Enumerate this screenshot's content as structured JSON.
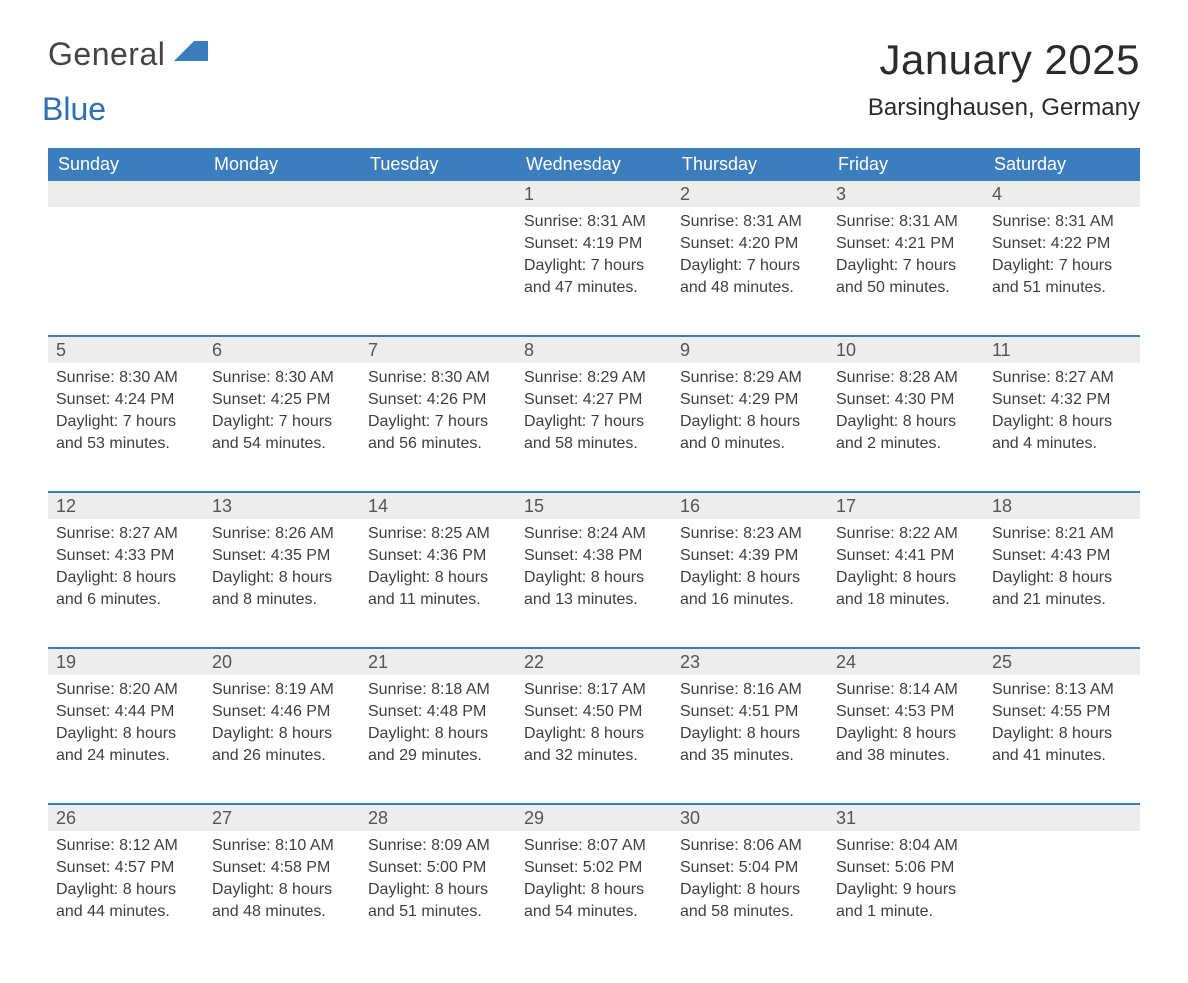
{
  "logo": {
    "general": "General",
    "blue": "Blue",
    "flag_color": "#3c7ebd"
  },
  "title": {
    "month": "January 2025",
    "location": "Barsinghausen, Germany"
  },
  "colors": {
    "header_bg": "#3c7ebd",
    "header_text": "#ffffff",
    "daynum_bg": "#ededed",
    "body_text": "#3e3e3e",
    "week_border": "#3c7ebd"
  },
  "fonts": {
    "title_size": 42,
    "location_size": 24,
    "header_size": 18,
    "body_size": 16
  },
  "day_headers": [
    "Sunday",
    "Monday",
    "Tuesday",
    "Wednesday",
    "Thursday",
    "Friday",
    "Saturday"
  ],
  "weeks": [
    [
      {
        "num": "",
        "sunrise": "",
        "sunset": "",
        "daylight1": "",
        "daylight2": ""
      },
      {
        "num": "",
        "sunrise": "",
        "sunset": "",
        "daylight1": "",
        "daylight2": ""
      },
      {
        "num": "",
        "sunrise": "",
        "sunset": "",
        "daylight1": "",
        "daylight2": ""
      },
      {
        "num": "1",
        "sunrise": "Sunrise: 8:31 AM",
        "sunset": "Sunset: 4:19 PM",
        "daylight1": "Daylight: 7 hours",
        "daylight2": "and 47 minutes."
      },
      {
        "num": "2",
        "sunrise": "Sunrise: 8:31 AM",
        "sunset": "Sunset: 4:20 PM",
        "daylight1": "Daylight: 7 hours",
        "daylight2": "and 48 minutes."
      },
      {
        "num": "3",
        "sunrise": "Sunrise: 8:31 AM",
        "sunset": "Sunset: 4:21 PM",
        "daylight1": "Daylight: 7 hours",
        "daylight2": "and 50 minutes."
      },
      {
        "num": "4",
        "sunrise": "Sunrise: 8:31 AM",
        "sunset": "Sunset: 4:22 PM",
        "daylight1": "Daylight: 7 hours",
        "daylight2": "and 51 minutes."
      }
    ],
    [
      {
        "num": "5",
        "sunrise": "Sunrise: 8:30 AM",
        "sunset": "Sunset: 4:24 PM",
        "daylight1": "Daylight: 7 hours",
        "daylight2": "and 53 minutes."
      },
      {
        "num": "6",
        "sunrise": "Sunrise: 8:30 AM",
        "sunset": "Sunset: 4:25 PM",
        "daylight1": "Daylight: 7 hours",
        "daylight2": "and 54 minutes."
      },
      {
        "num": "7",
        "sunrise": "Sunrise: 8:30 AM",
        "sunset": "Sunset: 4:26 PM",
        "daylight1": "Daylight: 7 hours",
        "daylight2": "and 56 minutes."
      },
      {
        "num": "8",
        "sunrise": "Sunrise: 8:29 AM",
        "sunset": "Sunset: 4:27 PM",
        "daylight1": "Daylight: 7 hours",
        "daylight2": "and 58 minutes."
      },
      {
        "num": "9",
        "sunrise": "Sunrise: 8:29 AM",
        "sunset": "Sunset: 4:29 PM",
        "daylight1": "Daylight: 8 hours",
        "daylight2": "and 0 minutes."
      },
      {
        "num": "10",
        "sunrise": "Sunrise: 8:28 AM",
        "sunset": "Sunset: 4:30 PM",
        "daylight1": "Daylight: 8 hours",
        "daylight2": "and 2 minutes."
      },
      {
        "num": "11",
        "sunrise": "Sunrise: 8:27 AM",
        "sunset": "Sunset: 4:32 PM",
        "daylight1": "Daylight: 8 hours",
        "daylight2": "and 4 minutes."
      }
    ],
    [
      {
        "num": "12",
        "sunrise": "Sunrise: 8:27 AM",
        "sunset": "Sunset: 4:33 PM",
        "daylight1": "Daylight: 8 hours",
        "daylight2": "and 6 minutes."
      },
      {
        "num": "13",
        "sunrise": "Sunrise: 8:26 AM",
        "sunset": "Sunset: 4:35 PM",
        "daylight1": "Daylight: 8 hours",
        "daylight2": "and 8 minutes."
      },
      {
        "num": "14",
        "sunrise": "Sunrise: 8:25 AM",
        "sunset": "Sunset: 4:36 PM",
        "daylight1": "Daylight: 8 hours",
        "daylight2": "and 11 minutes."
      },
      {
        "num": "15",
        "sunrise": "Sunrise: 8:24 AM",
        "sunset": "Sunset: 4:38 PM",
        "daylight1": "Daylight: 8 hours",
        "daylight2": "and 13 minutes."
      },
      {
        "num": "16",
        "sunrise": "Sunrise: 8:23 AM",
        "sunset": "Sunset: 4:39 PM",
        "daylight1": "Daylight: 8 hours",
        "daylight2": "and 16 minutes."
      },
      {
        "num": "17",
        "sunrise": "Sunrise: 8:22 AM",
        "sunset": "Sunset: 4:41 PM",
        "daylight1": "Daylight: 8 hours",
        "daylight2": "and 18 minutes."
      },
      {
        "num": "18",
        "sunrise": "Sunrise: 8:21 AM",
        "sunset": "Sunset: 4:43 PM",
        "daylight1": "Daylight: 8 hours",
        "daylight2": "and 21 minutes."
      }
    ],
    [
      {
        "num": "19",
        "sunrise": "Sunrise: 8:20 AM",
        "sunset": "Sunset: 4:44 PM",
        "daylight1": "Daylight: 8 hours",
        "daylight2": "and 24 minutes."
      },
      {
        "num": "20",
        "sunrise": "Sunrise: 8:19 AM",
        "sunset": "Sunset: 4:46 PM",
        "daylight1": "Daylight: 8 hours",
        "daylight2": "and 26 minutes."
      },
      {
        "num": "21",
        "sunrise": "Sunrise: 8:18 AM",
        "sunset": "Sunset: 4:48 PM",
        "daylight1": "Daylight: 8 hours",
        "daylight2": "and 29 minutes."
      },
      {
        "num": "22",
        "sunrise": "Sunrise: 8:17 AM",
        "sunset": "Sunset: 4:50 PM",
        "daylight1": "Daylight: 8 hours",
        "daylight2": "and 32 minutes."
      },
      {
        "num": "23",
        "sunrise": "Sunrise: 8:16 AM",
        "sunset": "Sunset: 4:51 PM",
        "daylight1": "Daylight: 8 hours",
        "daylight2": "and 35 minutes."
      },
      {
        "num": "24",
        "sunrise": "Sunrise: 8:14 AM",
        "sunset": "Sunset: 4:53 PM",
        "daylight1": "Daylight: 8 hours",
        "daylight2": "and 38 minutes."
      },
      {
        "num": "25",
        "sunrise": "Sunrise: 8:13 AM",
        "sunset": "Sunset: 4:55 PM",
        "daylight1": "Daylight: 8 hours",
        "daylight2": "and 41 minutes."
      }
    ],
    [
      {
        "num": "26",
        "sunrise": "Sunrise: 8:12 AM",
        "sunset": "Sunset: 4:57 PM",
        "daylight1": "Daylight: 8 hours",
        "daylight2": "and 44 minutes."
      },
      {
        "num": "27",
        "sunrise": "Sunrise: 8:10 AM",
        "sunset": "Sunset: 4:58 PM",
        "daylight1": "Daylight: 8 hours",
        "daylight2": "and 48 minutes."
      },
      {
        "num": "28",
        "sunrise": "Sunrise: 8:09 AM",
        "sunset": "Sunset: 5:00 PM",
        "daylight1": "Daylight: 8 hours",
        "daylight2": "and 51 minutes."
      },
      {
        "num": "29",
        "sunrise": "Sunrise: 8:07 AM",
        "sunset": "Sunset: 5:02 PM",
        "daylight1": "Daylight: 8 hours",
        "daylight2": "and 54 minutes."
      },
      {
        "num": "30",
        "sunrise": "Sunrise: 8:06 AM",
        "sunset": "Sunset: 5:04 PM",
        "daylight1": "Daylight: 8 hours",
        "daylight2": "and 58 minutes."
      },
      {
        "num": "31",
        "sunrise": "Sunrise: 8:04 AM",
        "sunset": "Sunset: 5:06 PM",
        "daylight1": "Daylight: 9 hours",
        "daylight2": "and 1 minute."
      },
      {
        "num": "",
        "sunrise": "",
        "sunset": "",
        "daylight1": "",
        "daylight2": ""
      }
    ]
  ]
}
